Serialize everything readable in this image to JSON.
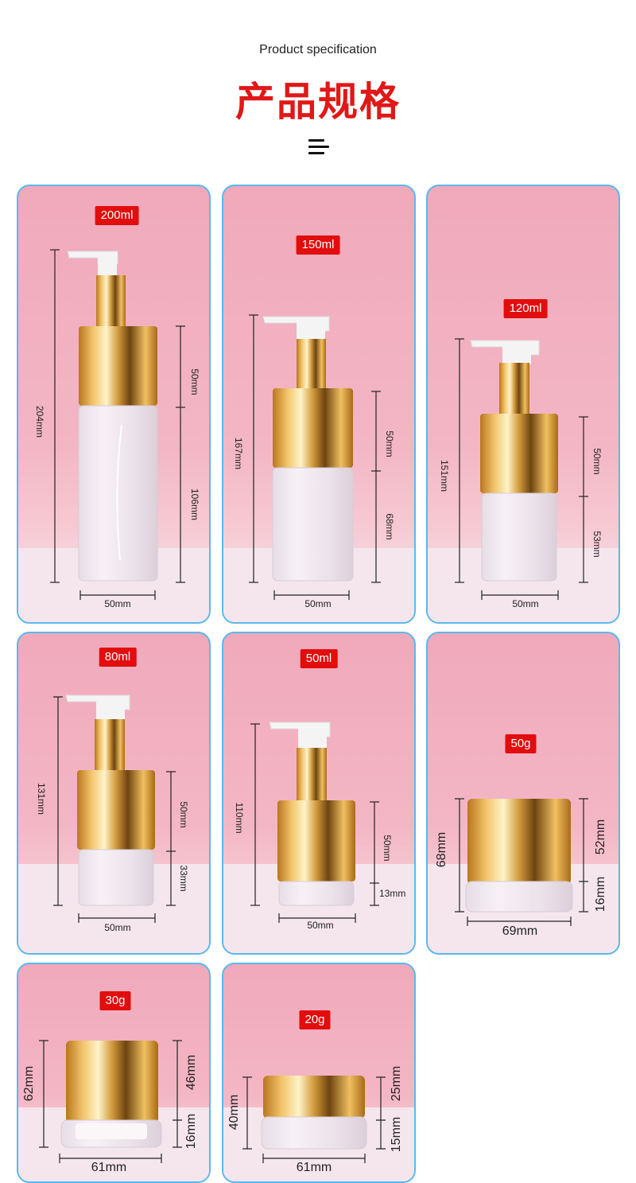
{
  "header": {
    "subtitle": "Product specification",
    "title": "产品规格"
  },
  "colors": {
    "accent": "#e20d0d",
    "card_border": "#5bb8ec",
    "gold": "#d9a84a"
  },
  "products": [
    {
      "capacity": "200ml",
      "height": "204mm",
      "upper": "50mm",
      "lower": "106mm",
      "width": "50mm"
    },
    {
      "capacity": "150ml",
      "height": "167mm",
      "upper": "50mm",
      "lower": "68mm",
      "width": "50mm"
    },
    {
      "capacity": "120ml",
      "height": "151mm",
      "upper": "50mm",
      "lower": "53mm",
      "width": "50mm"
    },
    {
      "capacity": "80ml",
      "height": "131mm",
      "upper": "50mm",
      "lower": "33mm",
      "width": "50mm"
    },
    {
      "capacity": "50ml",
      "height": "110mm",
      "upper": "50mm",
      "lower": "13mm",
      "width": "50mm"
    },
    {
      "capacity": "50g",
      "height": "68mm",
      "upper": "52mm",
      "lower": "16mm",
      "width": "69mm"
    },
    {
      "capacity": "30g",
      "height": "62mm",
      "upper": "46mm",
      "lower": "16mm",
      "width": "61mm"
    },
    {
      "capacity": "20g",
      "height": "40mm",
      "upper": "25mm",
      "lower": "15mm",
      "width": "61mm"
    }
  ]
}
